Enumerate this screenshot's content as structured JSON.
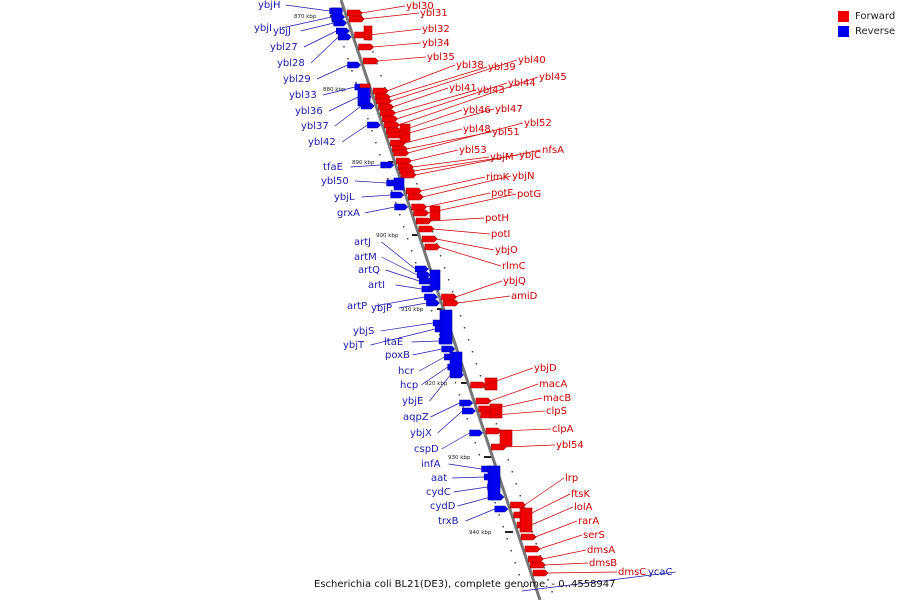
{
  "caption": "Escherichia coli BL21(DE3), complete genome. - 0..4558947",
  "legend": {
    "forward_label": "Forward",
    "reverse_label": "Reverse",
    "forward_color": "#ee0000",
    "reverse_color": "#0000ee"
  },
  "colors": {
    "forward_label": "#cc0000",
    "reverse_label": "#1a1aa8",
    "axis": "#777777"
  },
  "ticks": [
    "870 kbp",
    "880 kbp",
    "890 kbp",
    "900 kbp",
    "910 kbp",
    "920 kbp",
    "930 kbp",
    "940 kbp"
  ],
  "reverse_genes": [
    "ybjH",
    "ybjI",
    "ybjJ",
    "ybl27",
    "ybl28",
    "ybl29",
    "ybl33",
    "ybl36",
    "ybl37",
    "ybl42",
    "tfaE",
    "ybl50",
    "ybjL",
    "grxA",
    "artJ",
    "artM",
    "artQ",
    "artI",
    "artP",
    "ybjP",
    "ybjS",
    "ybjT",
    "ltaE",
    "poxB",
    "hcr",
    "hcp",
    "ybjE",
    "aqpZ",
    "ybjX",
    "cspD",
    "infA",
    "aat",
    "cydC",
    "cydD",
    "trxB",
    "ycaC"
  ],
  "forward_genes": [
    "ybl30",
    "ybl31",
    "ybl32",
    "ybl34",
    "ybl35",
    "ybl38",
    "ybl39",
    "ybl40",
    "ybl41",
    "ybl43",
    "ybl44",
    "ybl45",
    "ybl46",
    "ybl47",
    "ybl48",
    "ybl51",
    "ybl52",
    "ybl53",
    "ybjM",
    "ybjC",
    "nfsA",
    "rimK",
    "ybjN",
    "potF",
    "potG",
    "potH",
    "potI",
    "ybjO",
    "rlmC",
    "ybjQ",
    "amiD",
    "ybjD",
    "macA",
    "macB",
    "clpS",
    "clpA",
    "ybl54",
    "lrp",
    "ftsK",
    "lolA",
    "rarA",
    "serS",
    "dmsA",
    "dmsB",
    "dmsC"
  ]
}
